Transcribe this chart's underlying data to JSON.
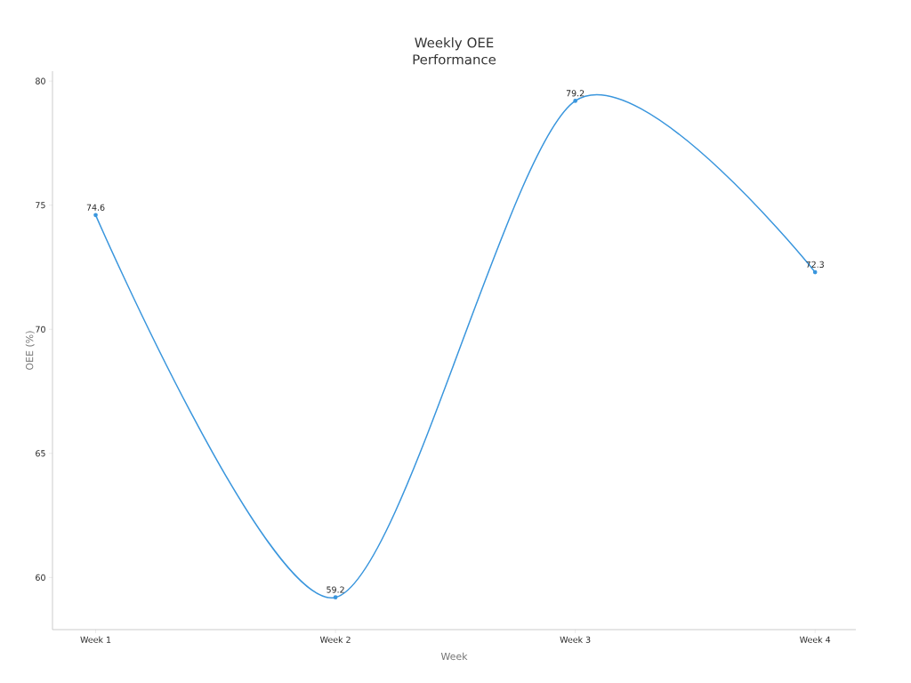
{
  "chart_data": {
    "type": "line",
    "title": "Weekly OEE Performance",
    "xlabel": "Week",
    "ylabel": "OEE (%)",
    "categories": [
      "Week 1",
      "Week 2",
      "Week 3",
      "Week 4"
    ],
    "values": [
      74.6,
      59.2,
      79.2,
      72.3
    ],
    "color": "#3a96dd",
    "ylim": [
      57.9,
      80.4
    ],
    "yticks": [
      60,
      65,
      70,
      75,
      80
    ],
    "marker": "circle",
    "line_style": "solid",
    "data_labels": true
  }
}
